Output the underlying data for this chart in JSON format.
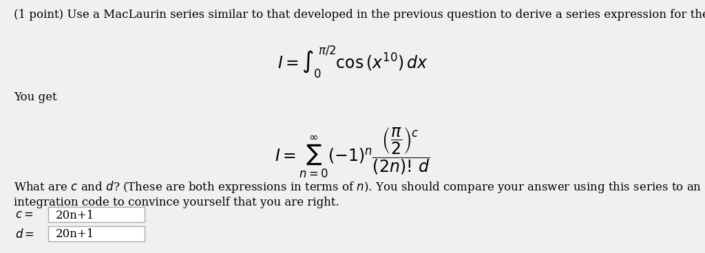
{
  "background_color": "#f0f0f0",
  "text_color": "#000000",
  "title_text": "(1 point) Use a MacLaurin series similar to that developed in the previous question to derive a series expression for the integral",
  "you_get_text": "You get",
  "what_are_text1": "What are $c$ and $d$? (These are both expressions in terms of $n$). You should compare your answer using this series to an answer obtained from a numerical",
  "what_are_text2": "integration code to convince yourself that you are right.",
  "c_label": "c =",
  "c_value": "20n+1",
  "d_label": "d =",
  "d_value": "20n+1",
  "font_size_main": 12,
  "box_color": "#ffffff",
  "box_edge_color": "#aaaaaa"
}
